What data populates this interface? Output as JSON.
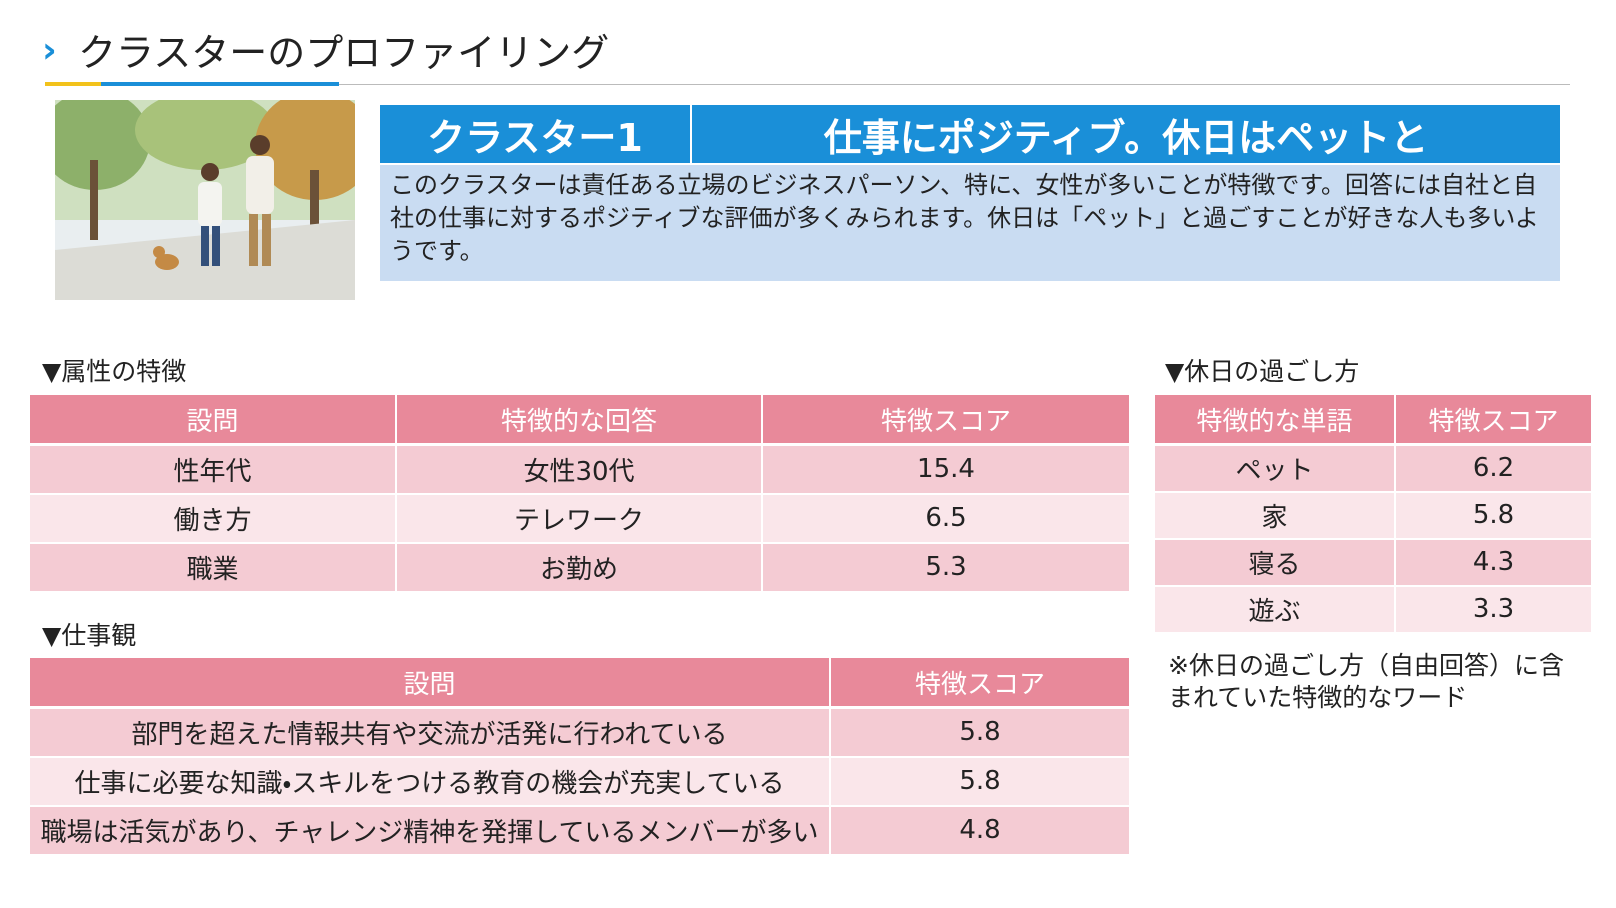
{
  "header": {
    "title": "クラスターのプロファイリング"
  },
  "cluster": {
    "label": "クラスター1",
    "headline": "仕事にポジティブ。休日はペットと",
    "description": "このクラスターは責任ある立場のビジネスパーソン、特に、女性が多いことが特徴です。回答には自社と自社の仕事に対するポジティブな評価が多くみられます。休日は「ペット」と過ごすことが好きな人も多いようです。"
  },
  "attributes": {
    "heading": "▼属性の特徴",
    "columns": [
      "設問",
      "特徴的な回答",
      "特徴スコア"
    ],
    "rows": [
      [
        "性年代",
        "女性30代",
        15.4
      ],
      [
        "働き方",
        "テレワーク",
        6.5
      ],
      [
        "職業",
        "お勤め",
        5.3
      ]
    ]
  },
  "work": {
    "heading": "▼仕事観",
    "columns": [
      "設問",
      "特徴スコア"
    ],
    "rows": [
      [
        "部門を超えた情報共有や交流が活発に行われている",
        5.8
      ],
      [
        "仕事に必要な知識・スキルをつける教育の機会が充実している",
        5.8
      ],
      [
        "職場は活気があり、チャレンジ精神を発揮しているメンバーが多い",
        4.8
      ]
    ]
  },
  "holiday": {
    "heading": "▼休日の過ごし方",
    "columns": [
      "特徴的な単語",
      "特徴スコア"
    ],
    "rows": [
      [
        "ペット",
        6.2
      ],
      [
        "家",
        5.8
      ],
      [
        "寝る",
        4.3
      ],
      [
        "遊ぶ",
        3.3
      ]
    ],
    "note": "※休日の過ごし方（自由回答）に含まれていた特徴的なワード"
  }
}
